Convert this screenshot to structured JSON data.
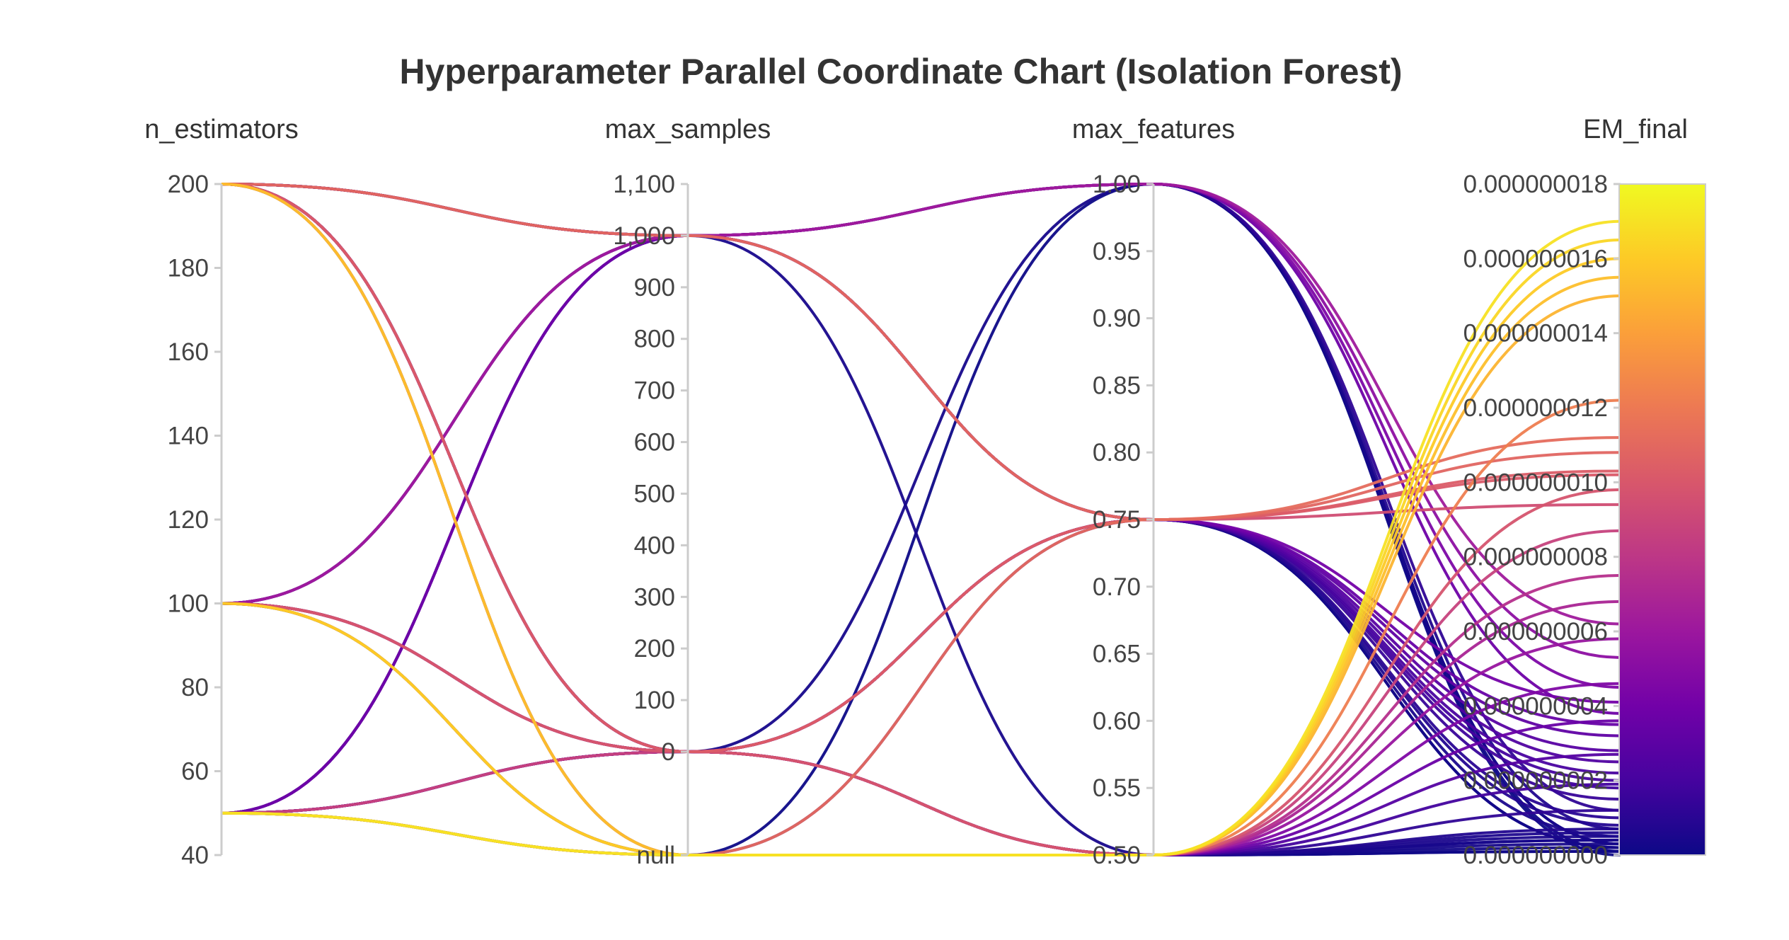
{
  "chart_data": {
    "type": "parallel_coordinates",
    "title": "Hyperparameter Parallel Coordinate Chart (Isolation Forest)",
    "color_by": "EM_final",
    "colorscale": [
      "#0d0887",
      "#46039f",
      "#7201a8",
      "#9c179e",
      "#bd3786",
      "#d8576b",
      "#ed7953",
      "#fb9f3a",
      "#fdca26",
      "#f0f921"
    ],
    "dimensions": [
      {
        "name": "n_estimators",
        "label": "n_estimators",
        "range": [
          40,
          200
        ],
        "ticks": [
          "200",
          "180",
          "160",
          "140",
          "120",
          "100",
          "80",
          "60",
          "40"
        ]
      },
      {
        "name": "max_samples",
        "label": "max_samples",
        "range": [
          0,
          1100
        ],
        "ticks": [
          "1,100",
          "1,000",
          "900",
          "800",
          "700",
          "600",
          "500",
          "400",
          "300",
          "200",
          "100",
          "0",
          "null"
        ]
      },
      {
        "name": "max_features",
        "label": "max_features",
        "range": [
          0.5,
          1.0
        ],
        "ticks": [
          "1.00",
          "0.95",
          "0.90",
          "0.85",
          "0.80",
          "0.75",
          "0.70",
          "0.65",
          "0.60",
          "0.55",
          "0.50"
        ]
      },
      {
        "name": "EM_final",
        "label": "EM_final",
        "range": [
          0,
          1.8e-08
        ],
        "ticks": [
          "0.000000018",
          "0.000000016",
          "0.000000014",
          "0.000000012",
          "0.000000010",
          "0.000000008",
          "0.000000006",
          "0.000000004",
          "0.000000002",
          "0.000000000"
        ]
      }
    ],
    "lines": [
      [
        200,
        1000,
        1.0,
        1e-10
      ],
      [
        200,
        1000,
        1.0,
        3e-10
      ],
      [
        200,
        1000,
        0.75,
        2e-10
      ],
      [
        200,
        1000,
        0.75,
        5e-10
      ],
      [
        200,
        1000,
        0.75,
        8e-10
      ],
      [
        200,
        0,
        0.5,
        1e-10
      ],
      [
        200,
        0,
        0.5,
        4e-10
      ],
      [
        200,
        "null",
        0.5,
        2e-10
      ],
      [
        100,
        1000,
        1.0,
        7e-10
      ],
      [
        100,
        1000,
        0.75,
        2e-09
      ],
      [
        100,
        0,
        0.75,
        1.5e-09
      ],
      [
        100,
        0,
        0.5,
        3e-10
      ],
      [
        100,
        "null",
        0.5,
        6e-10
      ],
      [
        100,
        "null",
        0.5,
        1e-10
      ],
      [
        50,
        1000,
        1.0,
        1.2e-09
      ],
      [
        50,
        1000,
        0.5,
        4e-10
      ],
      [
        50,
        0,
        1.0,
        3e-10
      ],
      [
        50,
        0,
        0.75,
        1e-09
      ],
      [
        50,
        0,
        0.75,
        2e-10
      ],
      [
        50,
        "null",
        0.5,
        7e-10
      ],
      [
        50,
        "null",
        1.0,
        0.0
      ],
      [
        200,
        1000,
        0.75,
        1.02e-08
      ],
      [
        200,
        1000,
        0.75,
        1.08e-08
      ],
      [
        50,
        "null",
        0.75,
        1.12e-08
      ],
      [
        100,
        1000,
        1.0,
        4.5e-09
      ],
      [
        100,
        1000,
        1.0,
        6.2e-09
      ],
      [
        50,
        1000,
        1.0,
        3.8e-09
      ],
      [
        200,
        1000,
        1.0,
        5.3e-09
      ],
      [
        100,
        0,
        0.75,
        2.8e-09
      ],
      [
        50,
        0,
        0.75,
        3.2e-09
      ],
      [
        200,
        0,
        0.75,
        4.1e-09
      ],
      [
        200,
        0,
        0.75,
        1.03e-08
      ],
      [
        100,
        0,
        0.75,
        9.4e-09
      ],
      [
        50,
        "null",
        0.75,
        2.2e-09
      ],
      [
        200,
        0,
        0.75,
        1.8e-09
      ],
      [
        100,
        1000,
        0.75,
        2.5e-09
      ],
      [
        50,
        1000,
        0.75,
        3.5e-09
      ],
      [
        200,
        "null",
        0.5,
        1.55e-08
      ],
      [
        100,
        "null",
        0.5,
        1.6e-08
      ],
      [
        50,
        "null",
        0.5,
        1.65e-08
      ],
      [
        50,
        "null",
        0.5,
        1.7e-08
      ],
      [
        100,
        "null",
        0.5,
        1.5e-08
      ],
      [
        200,
        "null",
        0.5,
        1.22e-08
      ],
      [
        100,
        0,
        0.5,
        9.8e-09
      ],
      [
        50,
        0,
        0.5,
        8.7e-09
      ],
      [
        200,
        0,
        0.5,
        7.5e-09
      ],
      [
        100,
        0,
        0.5,
        6.8e-09
      ],
      [
        50,
        0,
        0.5,
        5.8e-09
      ],
      [
        200,
        0,
        0.5,
        4.6e-09
      ],
      [
        100,
        0,
        0.5,
        3.6e-09
      ],
      [
        50,
        0,
        0.5,
        2.7e-09
      ],
      [
        200,
        0,
        0.5,
        1.9e-09
      ],
      [
        100,
        0,
        0.5,
        1.2e-09
      ],
      [
        50,
        0,
        0.5,
        5e-10
      ]
    ]
  }
}
